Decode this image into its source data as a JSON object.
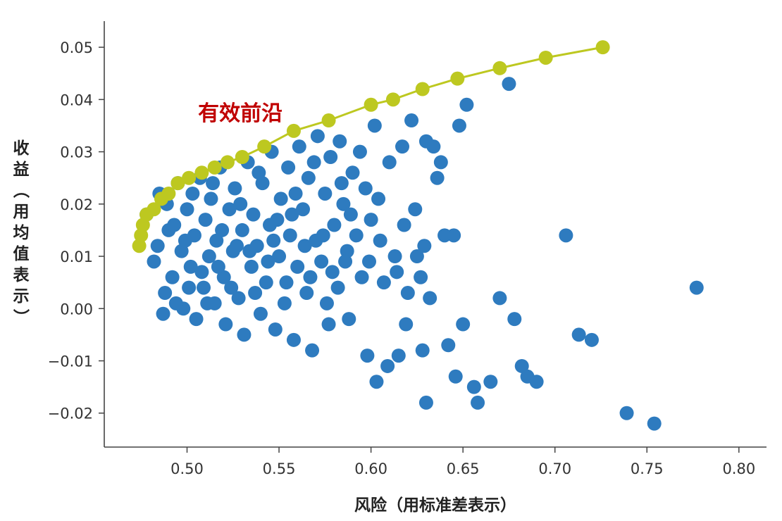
{
  "chart_data": {
    "type": "scatter",
    "xlabel": "风险（用标准差表示）",
    "ylabel": "收益（用均值表示）",
    "xlim": [
      0.455,
      0.815
    ],
    "ylim": [
      -0.0265,
      0.055
    ],
    "x_ticks": [
      0.5,
      0.55,
      0.6,
      0.65,
      0.7,
      0.75,
      0.8
    ],
    "x_tick_labels": [
      "0.50",
      "0.55",
      "0.60",
      "0.65",
      "0.70",
      "0.75",
      "0.80"
    ],
    "y_ticks": [
      -0.02,
      -0.01,
      0.0,
      0.01,
      0.02,
      0.03,
      0.04,
      0.05
    ],
    "y_tick_labels": [
      "−0.02",
      "−0.01",
      "0.00",
      "0.01",
      "0.02",
      "0.03",
      "0.04",
      "0.05"
    ],
    "grid": false,
    "annotations": [
      {
        "text": "有效前沿",
        "x": 0.506,
        "y": 0.036,
        "color": "#c00000"
      }
    ],
    "series": [
      {
        "color": "#2e7bbf",
        "points": [
          [
            0.478,
            0.018
          ],
          [
            0.482,
            0.009
          ],
          [
            0.485,
            0.022
          ],
          [
            0.488,
            0.003
          ],
          [
            0.49,
            0.015
          ],
          [
            0.492,
            0.006
          ],
          [
            0.495,
            0.024
          ],
          [
            0.497,
            0.011
          ],
          [
            0.498,
            0.0
          ],
          [
            0.5,
            0.019
          ],
          [
            0.502,
            0.008
          ],
          [
            0.504,
            0.014
          ],
          [
            0.505,
            -0.002
          ],
          [
            0.507,
            0.025
          ],
          [
            0.509,
            0.004
          ],
          [
            0.51,
            0.017
          ],
          [
            0.512,
            0.01
          ],
          [
            0.513,
            0.021
          ],
          [
            0.515,
            0.001
          ],
          [
            0.516,
            0.013
          ],
          [
            0.518,
            0.027
          ],
          [
            0.52,
            0.006
          ],
          [
            0.521,
            -0.003
          ],
          [
            0.523,
            0.019
          ],
          [
            0.525,
            0.011
          ],
          [
            0.526,
            0.023
          ],
          [
            0.528,
            0.002
          ],
          [
            0.53,
            0.015
          ],
          [
            0.531,
            -0.005
          ],
          [
            0.533,
            0.028
          ],
          [
            0.535,
            0.008
          ],
          [
            0.536,
            0.018
          ],
          [
            0.538,
            0.012
          ],
          [
            0.54,
            -0.001
          ],
          [
            0.541,
            0.024
          ],
          [
            0.543,
            0.005
          ],
          [
            0.545,
            0.016
          ],
          [
            0.546,
            0.03
          ],
          [
            0.548,
            -0.004
          ],
          [
            0.55,
            0.01
          ],
          [
            0.551,
            0.021
          ],
          [
            0.553,
            0.001
          ],
          [
            0.555,
            0.027
          ],
          [
            0.556,
            0.014
          ],
          [
            0.558,
            -0.006
          ],
          [
            0.56,
            0.008
          ],
          [
            0.561,
            0.031
          ],
          [
            0.563,
            0.019
          ],
          [
            0.565,
            0.003
          ],
          [
            0.566,
            0.025
          ],
          [
            0.568,
            -0.008
          ],
          [
            0.57,
            0.013
          ],
          [
            0.571,
            0.033
          ],
          [
            0.573,
            0.009
          ],
          [
            0.575,
            0.022
          ],
          [
            0.577,
            -0.003
          ],
          [
            0.578,
            0.029
          ],
          [
            0.58,
            0.016
          ],
          [
            0.582,
            0.004
          ],
          [
            0.583,
            0.032
          ],
          [
            0.585,
            0.02
          ],
          [
            0.587,
            0.011
          ],
          [
            0.588,
            -0.002
          ],
          [
            0.59,
            0.026
          ],
          [
            0.592,
            0.014
          ],
          [
            0.595,
            0.006
          ],
          [
            0.597,
            0.023
          ],
          [
            0.598,
            -0.009
          ],
          [
            0.6,
            0.017
          ],
          [
            0.602,
            0.035
          ],
          [
            0.603,
            -0.014
          ],
          [
            0.605,
            0.013
          ],
          [
            0.607,
            0.005
          ],
          [
            0.61,
            0.028
          ],
          [
            0.613,
            0.01
          ],
          [
            0.615,
            -0.009
          ],
          [
            0.617,
            0.031
          ],
          [
            0.618,
            0.016
          ],
          [
            0.62,
            0.003
          ],
          [
            0.622,
            0.036
          ],
          [
            0.625,
            0.01
          ],
          [
            0.627,
            0.006
          ],
          [
            0.628,
            -0.008
          ],
          [
            0.63,
            0.032
          ],
          [
            0.63,
            -0.018
          ],
          [
            0.632,
            0.002
          ],
          [
            0.634,
            0.031
          ],
          [
            0.636,
            0.025
          ],
          [
            0.638,
            0.028
          ],
          [
            0.64,
            0.014
          ],
          [
            0.642,
            -0.007
          ],
          [
            0.645,
            0.014
          ],
          [
            0.646,
            -0.013
          ],
          [
            0.648,
            0.035
          ],
          [
            0.65,
            -0.003
          ],
          [
            0.652,
            0.039
          ],
          [
            0.656,
            -0.015
          ],
          [
            0.658,
            -0.018
          ],
          [
            0.665,
            -0.014
          ],
          [
            0.67,
            0.002
          ],
          [
            0.675,
            0.043
          ],
          [
            0.678,
            -0.002
          ],
          [
            0.682,
            -0.011
          ],
          [
            0.685,
            -0.013
          ],
          [
            0.69,
            -0.014
          ],
          [
            0.706,
            0.014
          ],
          [
            0.713,
            -0.005
          ],
          [
            0.72,
            -0.006
          ],
          [
            0.739,
            -0.02
          ],
          [
            0.754,
            -0.022
          ],
          [
            0.777,
            0.004
          ],
          [
            0.484,
            0.012
          ],
          [
            0.489,
            0.02
          ],
          [
            0.494,
            0.001
          ],
          [
            0.499,
            0.013
          ],
          [
            0.503,
            0.022
          ],
          [
            0.508,
            0.007
          ],
          [
            0.514,
            0.024
          ],
          [
            0.519,
            0.015
          ],
          [
            0.524,
            0.004
          ],
          [
            0.529,
            0.02
          ],
          [
            0.534,
            0.011
          ],
          [
            0.539,
            0.026
          ],
          [
            0.544,
            0.009
          ],
          [
            0.549,
            0.017
          ],
          [
            0.554,
            0.005
          ],
          [
            0.559,
            0.022
          ],
          [
            0.564,
            0.012
          ],
          [
            0.569,
            0.028
          ],
          [
            0.574,
            0.014
          ],
          [
            0.579,
            0.007
          ],
          [
            0.584,
            0.024
          ],
          [
            0.589,
            0.018
          ],
          [
            0.594,
            0.03
          ],
          [
            0.599,
            0.009
          ],
          [
            0.604,
            0.021
          ],
          [
            0.609,
            -0.011
          ],
          [
            0.614,
            0.007
          ],
          [
            0.619,
            -0.003
          ],
          [
            0.624,
            0.019
          ],
          [
            0.629,
            0.012
          ],
          [
            0.487,
            -0.001
          ],
          [
            0.493,
            0.016
          ],
          [
            0.501,
            0.004
          ],
          [
            0.511,
            0.001
          ],
          [
            0.517,
            0.008
          ],
          [
            0.527,
            0.012
          ],
          [
            0.537,
            0.003
          ],
          [
            0.547,
            0.013
          ],
          [
            0.557,
            0.018
          ],
          [
            0.567,
            0.006
          ],
          [
            0.576,
            0.001
          ],
          [
            0.586,
            0.009
          ]
        ]
      },
      {
        "color": "#bdc820",
        "line": true,
        "points": [
          [
            0.474,
            0.012
          ],
          [
            0.475,
            0.014
          ],
          [
            0.476,
            0.016
          ],
          [
            0.478,
            0.018
          ],
          [
            0.482,
            0.019
          ],
          [
            0.486,
            0.021
          ],
          [
            0.49,
            0.022
          ],
          [
            0.495,
            0.024
          ],
          [
            0.501,
            0.025
          ],
          [
            0.508,
            0.026
          ],
          [
            0.515,
            0.027
          ],
          [
            0.522,
            0.028
          ],
          [
            0.53,
            0.029
          ],
          [
            0.542,
            0.031
          ],
          [
            0.558,
            0.034
          ],
          [
            0.577,
            0.036
          ],
          [
            0.6,
            0.039
          ],
          [
            0.612,
            0.04
          ],
          [
            0.628,
            0.042
          ],
          [
            0.647,
            0.044
          ],
          [
            0.67,
            0.046
          ],
          [
            0.695,
            0.048
          ],
          [
            0.726,
            0.05
          ]
        ]
      }
    ]
  }
}
